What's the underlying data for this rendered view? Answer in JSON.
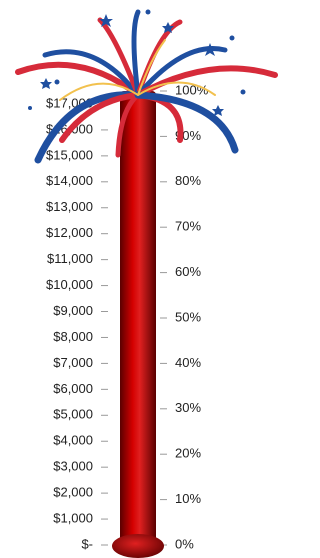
{
  "chart_data": {
    "type": "bar",
    "values": [
      17500
    ],
    "color": "#b00000",
    "ylim": [
      0,
      17500
    ],
    "yticks": [
      {
        "value": 0,
        "label": "$-"
      },
      {
        "value": 1000,
        "label": "$1,000"
      },
      {
        "value": 2000,
        "label": "$2,000"
      },
      {
        "value": 3000,
        "label": "$3,000"
      },
      {
        "value": 4000,
        "label": "$4,000"
      },
      {
        "value": 5000,
        "label": "$5,000"
      },
      {
        "value": 6000,
        "label": "$6,000"
      },
      {
        "value": 7000,
        "label": "$7,000"
      },
      {
        "value": 8000,
        "label": "$8,000"
      },
      {
        "value": 9000,
        "label": "$9,000"
      },
      {
        "value": 10000,
        "label": "$10,000"
      },
      {
        "value": 11000,
        "label": "$11,000"
      },
      {
        "value": 12000,
        "label": "$12,000"
      },
      {
        "value": 13000,
        "label": "$13,000"
      },
      {
        "value": 14000,
        "label": "$14,000"
      },
      {
        "value": 15000,
        "label": "$15,000"
      },
      {
        "value": 16000,
        "label": "$16,000"
      },
      {
        "value": 17000,
        "label": "$17,000"
      }
    ],
    "y2lim": [
      0,
      100
    ],
    "y2ticks": [
      {
        "value": 0,
        "label": "0%"
      },
      {
        "value": 10,
        "label": "10%"
      },
      {
        "value": 20,
        "label": "20%"
      },
      {
        "value": 30,
        "label": "30%"
      },
      {
        "value": 40,
        "label": "40%"
      },
      {
        "value": 50,
        "label": "50%"
      },
      {
        "value": 60,
        "label": "60%"
      },
      {
        "value": 70,
        "label": "70%"
      },
      {
        "value": 80,
        "label": "80%"
      },
      {
        "value": 90,
        "label": "90%"
      },
      {
        "value": 100,
        "label": "100%"
      }
    ]
  }
}
